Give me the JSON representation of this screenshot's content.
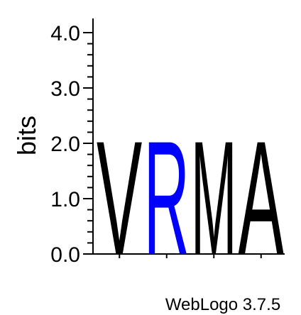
{
  "chart_data": {
    "type": "sequence-logo",
    "ylabel": "bits",
    "ylim": [
      0,
      4.0
    ],
    "y_tick_labels": [
      "0.0",
      "1.0",
      "2.0",
      "3.0",
      "4.0"
    ],
    "y_tick_values": [
      0,
      1,
      2,
      3,
      4
    ],
    "y_minor_step": 0.2,
    "positions": [
      {
        "letter": "V",
        "bits": 2.1,
        "color": "#000000"
      },
      {
        "letter": "R",
        "bits": 2.1,
        "color": "#0000ff"
      },
      {
        "letter": "M",
        "bits": 2.1,
        "color": "#000000"
      },
      {
        "letter": "A",
        "bits": 2.1,
        "color": "#000000"
      }
    ],
    "credit": "WebLogo 3.7.5"
  }
}
